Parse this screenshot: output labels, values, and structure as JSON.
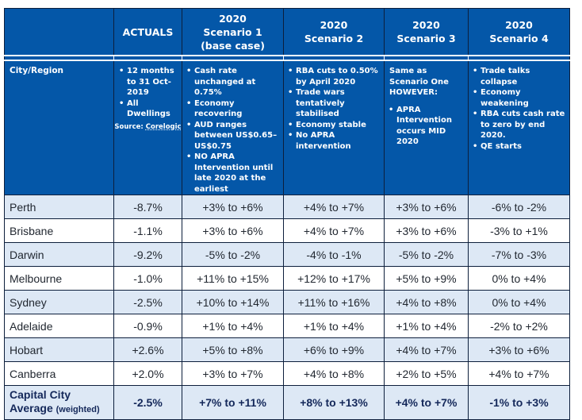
{
  "header": {
    "columns": [
      {
        "line1": "",
        "line2": "",
        "line3": ""
      },
      {
        "line1": "ACTUALS",
        "line2": "",
        "line3": ""
      },
      {
        "line1": "2020",
        "line2": "Scenario 1",
        "line3": "(base case)"
      },
      {
        "line1": "2020",
        "line2": "Scenario 2",
        "line3": ""
      },
      {
        "line1": "2020",
        "line2": "Scenario 3",
        "line3": ""
      },
      {
        "line1": "2020",
        "line2": "Scenario 4",
        "line3": ""
      }
    ]
  },
  "assumptions": {
    "city_label": "City/Region",
    "actuals": {
      "bullets": [
        "12 months to 31 Oct-2019",
        "All Dwellings"
      ],
      "source_prefix": "Source: ",
      "source_name": "Corelogic"
    },
    "scenario1": {
      "bullets": [
        "Cash rate unchanged at 0.75%",
        "Economy recovering",
        "AUD ranges between US$0.65–US$0.75",
        "NO APRA Intervention until late 2020 at the earliest"
      ]
    },
    "scenario2": {
      "bullets": [
        "RBA cuts to 0.50% by April 2020",
        "Trade wars tentatively stabilised",
        "Economy stable",
        "No APRA intervention"
      ]
    },
    "scenario3": {
      "intro": "Same as Scenario One HOWEVER:",
      "bullets": [
        "APRA Intervention occurs MID 2020"
      ]
    },
    "scenario4": {
      "bullets": [
        "Trade talks collapse",
        "Economy weakening",
        "RBA cuts cash rate to zero by end 2020.",
        "QE starts"
      ]
    }
  },
  "rows": [
    {
      "city": "Perth",
      "actual": "-8.7%",
      "s1": "+3% to +6%",
      "s2": "+4% to +7%",
      "s3": "+3% to +6%",
      "s4": "-6% to -2%"
    },
    {
      "city": "Brisbane",
      "actual": "-1.1%",
      "s1": "+3% to +6%",
      "s2": "+4% to +7%",
      "s3": "+3% to +6%",
      "s4": "-3% to +1%"
    },
    {
      "city": "Darwin",
      "actual": "-9.2%",
      "s1": "-5% to -2%",
      "s2": "-4% to -1%",
      "s3": "-5% to -2%",
      "s4": "-7% to -3%"
    },
    {
      "city": "Melbourne",
      "actual": "-1.0%",
      "s1": "+11% to +15%",
      "s2": "+12% to +17%",
      "s3": "+5% to +9%",
      "s4": "0% to +4%"
    },
    {
      "city": "Sydney",
      "actual": "-2.5%",
      "s1": "+10% to +14%",
      "s2": "+11% to +16%",
      "s3": "+4% to +8%",
      "s4": "0% to +4%"
    },
    {
      "city": "Adelaide",
      "actual": "-0.9%",
      "s1": "+1% to +4%",
      "s2": "+1% to +4%",
      "s3": "+1% to +4%",
      "s4": "-2% to +2%"
    },
    {
      "city": "Hobart",
      "actual": "+2.6%",
      "s1": "+5% to +8%",
      "s2": "+6% to +9%",
      "s3": "+4% to +7%",
      "s4": "+3% to +6%"
    },
    {
      "city": "Canberra",
      "actual": "+2.0%",
      "s1": "+3% to +7%",
      "s2": "+4% to +8%",
      "s3": "+2% to +5%",
      "s4": "+4% to +7%"
    }
  ],
  "total": {
    "city_line1": "Capital City",
    "city_line2": "Average",
    "city_note": "(weighted)",
    "actual": "-2.5%",
    "s1": "+7% to +11%",
    "s2": "+8% to +13%",
    "s3": "+4% to +7%",
    "s4": "-1% to +3%"
  },
  "colors": {
    "header_bg": "#0457a8",
    "row_alt_bg": "#dde8f5",
    "row_plain_bg": "#ffffff",
    "total_text": "#14285a"
  }
}
